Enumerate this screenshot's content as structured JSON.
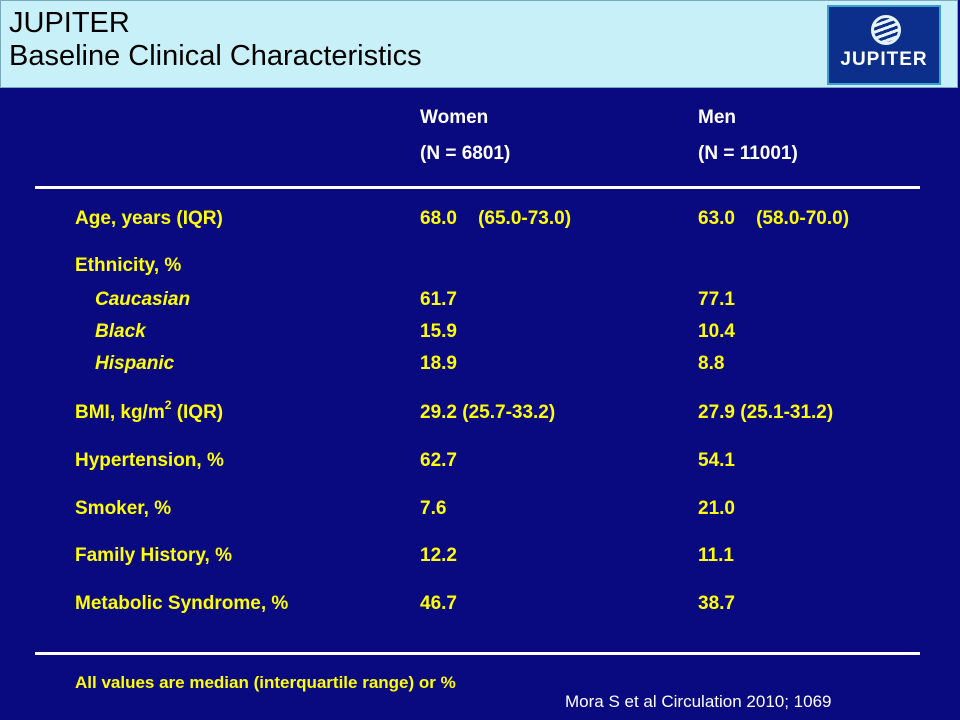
{
  "slide": {
    "title_line1": "JUPITER",
    "title_line2": "Baseline Clinical Characteristics",
    "logo_text": "JUPITER"
  },
  "columns": {
    "women_label": "Women",
    "women_n": "(N = 6801)",
    "men_label": "Men",
    "men_n": "(N = 11001)"
  },
  "rows": [
    {
      "label": "Age, years (IQR)",
      "women": "68.0    (65.0-73.0)",
      "men": "63.0    (58.0-70.0)"
    },
    {
      "label": "Ethnicity, %",
      "women": "",
      "men": ""
    },
    {
      "label": "Caucasian",
      "women": "61.7",
      "men": "77.1"
    },
    {
      "label": "Black",
      "women": "15.9",
      "men": "10.4"
    },
    {
      "label": "Hispanic",
      "women": "18.9",
      "men": "8.8"
    },
    {
      "label_pre": "BMI, kg/m",
      "label_sup": "2",
      "label_post": " (IQR)",
      "women": "29.2 (25.7-33.2)",
      "men": "27.9 (25.1-31.2)"
    },
    {
      "label": "Hypertension, %",
      "women": "62.7",
      "men": "54.1"
    },
    {
      "label": "Smoker, %",
      "women": "7.6",
      "men": "21.0"
    },
    {
      "label": "Family History, %",
      "women": "12.2",
      "men": "11.1"
    },
    {
      "label": "Metabolic Syndrome, %",
      "women": "46.7",
      "men": "38.7"
    }
  ],
  "footnote": "All values are median (interquartile range) or %",
  "citation": "Mora S et al Circulation 2010; 1069",
  "colors": {
    "background": "#0a0a80",
    "header": "#c8f0f8",
    "label_text": "#ffff00",
    "value_text": "#ffffff"
  }
}
